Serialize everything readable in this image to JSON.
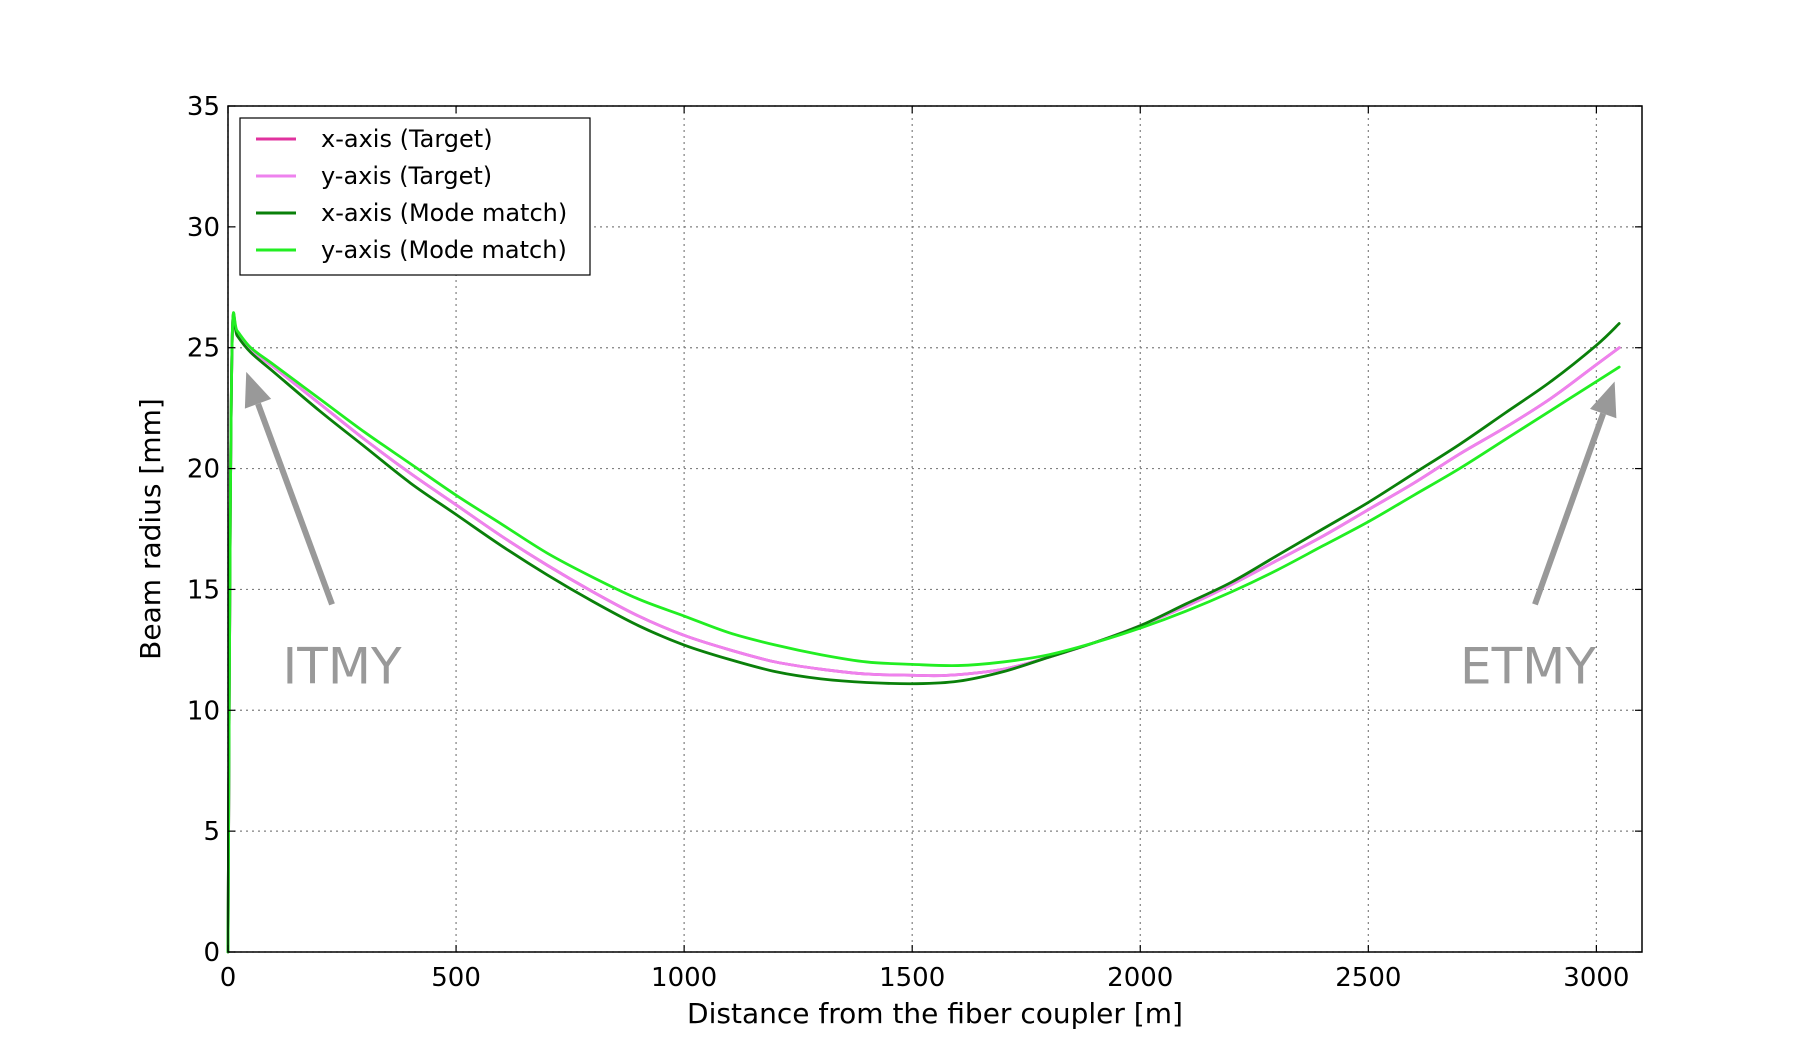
{
  "chart_data": {
    "type": "line",
    "title": "",
    "xlabel": "Distance from the fiber coupler [m]",
    "ylabel": "Beam radius [mm]",
    "xlim": [
      0,
      3100
    ],
    "ylim": [
      0,
      35
    ],
    "xticks": [
      0,
      500,
      1000,
      1500,
      2000,
      2500,
      3000
    ],
    "yticks": [
      0,
      5,
      10,
      15,
      20,
      25,
      30,
      35
    ],
    "grid": true,
    "legend_position": "top-left",
    "series": [
      {
        "name": "x-axis (Target)",
        "color": "#e0329e",
        "x": [
          0,
          5,
          10,
          20,
          50,
          100,
          200,
          300,
          400,
          500,
          600,
          700,
          800,
          900,
          1000,
          1100,
          1200,
          1300,
          1400,
          1500,
          1580,
          1700,
          1800,
          1900,
          2000,
          2100,
          2200,
          2300,
          2400,
          2500,
          2600,
          2700,
          2800,
          2900,
          3000,
          3050
        ],
        "y": [
          0,
          18,
          25.9,
          25.6,
          24.9,
          24.2,
          22.7,
          21.2,
          19.8,
          18.5,
          17.2,
          16.0,
          14.9,
          13.9,
          13.1,
          12.5,
          12.0,
          11.7,
          11.5,
          11.45,
          11.45,
          11.7,
          12.2,
          12.8,
          13.5,
          14.3,
          15.2,
          16.2,
          17.2,
          18.3,
          19.4,
          20.6,
          21.7,
          22.9,
          24.3,
          25.0
        ]
      },
      {
        "name": "y-axis (Target)",
        "color": "#ee82ee",
        "x": [
          0,
          5,
          10,
          20,
          50,
          100,
          200,
          300,
          400,
          500,
          600,
          700,
          800,
          900,
          1000,
          1100,
          1200,
          1300,
          1400,
          1500,
          1580,
          1700,
          1800,
          1900,
          2000,
          2100,
          2200,
          2300,
          2400,
          2500,
          2600,
          2700,
          2800,
          2900,
          3000,
          3050
        ],
        "y": [
          0,
          18,
          25.9,
          25.6,
          24.9,
          24.2,
          22.7,
          21.2,
          19.8,
          18.5,
          17.2,
          16.0,
          14.9,
          13.9,
          13.1,
          12.5,
          12.0,
          11.7,
          11.5,
          11.45,
          11.45,
          11.7,
          12.2,
          12.8,
          13.5,
          14.3,
          15.2,
          16.2,
          17.2,
          18.3,
          19.4,
          20.6,
          21.7,
          22.9,
          24.3,
          25.0
        ]
      },
      {
        "name": "x-axis (Mode match)",
        "color": "#0a800a",
        "x": [
          0,
          5,
          10,
          20,
          50,
          100,
          200,
          300,
          400,
          500,
          600,
          700,
          800,
          900,
          1000,
          1100,
          1200,
          1300,
          1400,
          1510,
          1600,
          1700,
          1800,
          1900,
          2000,
          2100,
          2200,
          2300,
          2400,
          2500,
          2600,
          2700,
          2800,
          2900,
          3000,
          3050
        ],
        "y": [
          0,
          18,
          25.9,
          25.5,
          24.8,
          24.0,
          22.4,
          20.9,
          19.4,
          18.1,
          16.8,
          15.6,
          14.5,
          13.5,
          12.7,
          12.1,
          11.6,
          11.3,
          11.15,
          11.1,
          11.2,
          11.6,
          12.2,
          12.8,
          13.5,
          14.4,
          15.3,
          16.4,
          17.5,
          18.6,
          19.8,
          21.0,
          22.3,
          23.6,
          25.1,
          26.0
        ]
      },
      {
        "name": "y-axis (Mode match)",
        "color": "#22ee22",
        "x": [
          0,
          5,
          10,
          20,
          50,
          100,
          200,
          300,
          400,
          500,
          600,
          700,
          800,
          900,
          1000,
          1100,
          1200,
          1300,
          1400,
          1500,
          1600,
          1700,
          1800,
          1900,
          2000,
          2100,
          2200,
          2300,
          2400,
          2500,
          2600,
          2700,
          2800,
          2900,
          3000,
          3050
        ],
        "y": [
          0,
          18,
          25.9,
          25.7,
          25.0,
          24.3,
          22.9,
          21.5,
          20.2,
          18.9,
          17.7,
          16.5,
          15.5,
          14.6,
          13.9,
          13.2,
          12.7,
          12.3,
          12.0,
          11.9,
          11.85,
          12.0,
          12.3,
          12.8,
          13.4,
          14.1,
          14.9,
          15.8,
          16.8,
          17.8,
          18.9,
          20.0,
          21.2,
          22.4,
          23.6,
          24.2
        ]
      }
    ],
    "annotations": [
      {
        "text": "ITMY",
        "arrow_tip": [
          40,
          24
        ],
        "text_at": [
          250,
          11.9
        ]
      },
      {
        "text": "ETMY",
        "arrow_tip": [
          3040,
          23.6
        ],
        "text_at": [
          2850,
          11.9
        ]
      }
    ]
  }
}
